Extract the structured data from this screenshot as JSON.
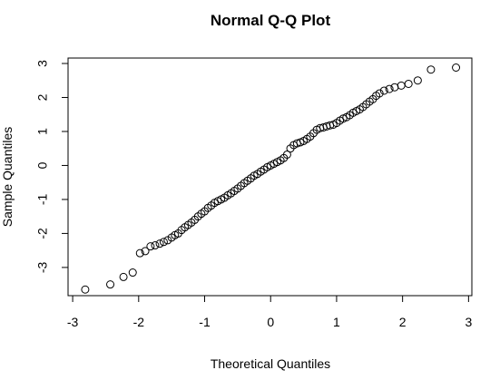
{
  "chart_data": {
    "type": "scatter",
    "title": "Normal Q-Q Plot",
    "x_label": "Theoretical Quantiles",
    "y_label": "Sample Quantiles",
    "x": [
      -2.81,
      -2.43,
      -2.23,
      -2.09,
      -1.98,
      -1.9,
      -1.82,
      -1.75,
      -1.68,
      -1.62,
      -1.56,
      -1.5,
      -1.45,
      -1.4,
      -1.35,
      -1.3,
      -1.25,
      -1.2,
      -1.15,
      -1.1,
      -1.05,
      -1.0,
      -0.95,
      -0.9,
      -0.85,
      -0.8,
      -0.75,
      -0.7,
      -0.65,
      -0.6,
      -0.55,
      -0.5,
      -0.45,
      -0.4,
      -0.35,
      -0.3,
      -0.25,
      -0.2,
      -0.15,
      -0.1,
      -0.05,
      0,
      0.05,
      0.1,
      0.15,
      0.2,
      0.25,
      0.3,
      0.35,
      0.4,
      0.45,
      0.5,
      0.55,
      0.6,
      0.65,
      0.7,
      0.75,
      0.8,
      0.85,
      0.9,
      0.95,
      1.0,
      1.05,
      1.1,
      1.15,
      1.2,
      1.25,
      1.3,
      1.35,
      1.4,
      1.45,
      1.5,
      1.55,
      1.6,
      1.65,
      1.72,
      1.8,
      1.88,
      1.98,
      2.09,
      2.23,
      2.43,
      2.81
    ],
    "values": [
      -3.65,
      -3.5,
      -3.28,
      -3.15,
      -2.58,
      -2.52,
      -2.38,
      -2.35,
      -2.3,
      -2.25,
      -2.2,
      -2.12,
      -2.05,
      -2.0,
      -1.9,
      -1.82,
      -1.75,
      -1.68,
      -1.6,
      -1.5,
      -1.42,
      -1.35,
      -1.25,
      -1.18,
      -1.1,
      -1.05,
      -1.0,
      -0.95,
      -0.88,
      -0.82,
      -0.75,
      -0.68,
      -0.6,
      -0.52,
      -0.45,
      -0.38,
      -0.3,
      -0.25,
      -0.18,
      -0.12,
      -0.05,
      0,
      0.05,
      0.1,
      0.15,
      0.22,
      0.32,
      0.5,
      0.6,
      0.65,
      0.68,
      0.72,
      0.78,
      0.85,
      0.95,
      1.05,
      1.1,
      1.12,
      1.15,
      1.18,
      1.2,
      1.25,
      1.32,
      1.38,
      1.42,
      1.48,
      1.55,
      1.6,
      1.65,
      1.72,
      1.8,
      1.88,
      1.95,
      2.05,
      2.12,
      2.2,
      2.25,
      2.3,
      2.35,
      2.4,
      2.5,
      2.82,
      2.88
    ],
    "color": "#000000",
    "xlim": [
      -3.07,
      3.05
    ],
    "ylim": [
      -3.83,
      3.16
    ],
    "xticks": [
      -3,
      -2,
      -1,
      0,
      1,
      2,
      3
    ],
    "yticks": [
      -3,
      -2,
      -1,
      0,
      1,
      2,
      3
    ]
  }
}
